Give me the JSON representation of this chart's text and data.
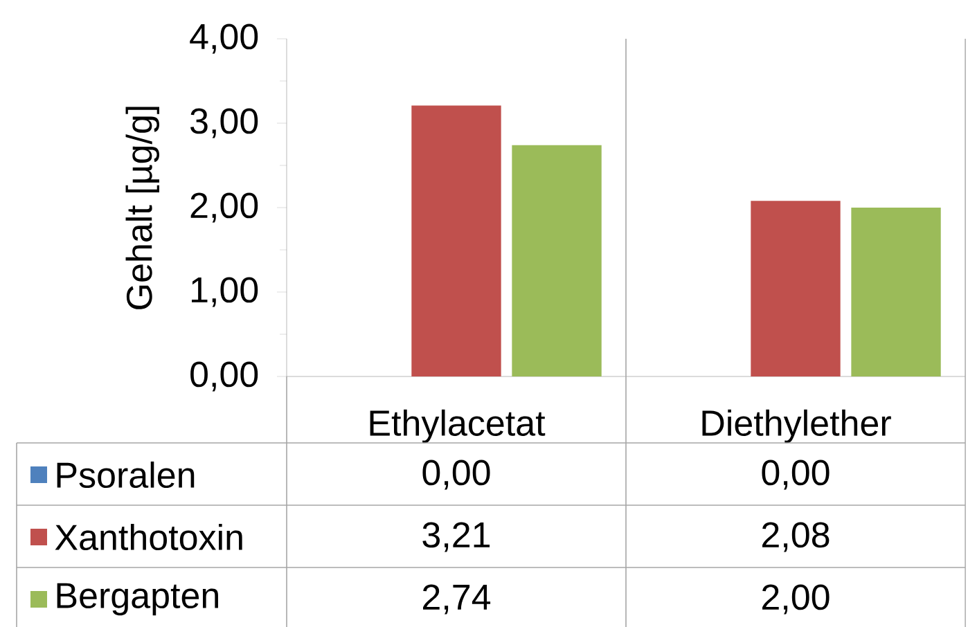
{
  "chart_data": {
    "type": "bar",
    "ylabel": "Gehalt [µg/g]",
    "categories": [
      "Ethylacetat",
      "Diethylether"
    ],
    "series": [
      {
        "name": "Psoralen",
        "color": "#4f81bd",
        "values": [
          0.0,
          0.0
        ],
        "value_labels": [
          "0,00",
          "0,00"
        ]
      },
      {
        "name": "Xanthotoxin",
        "color": "#c0504d",
        "values": [
          3.21,
          2.08
        ],
        "value_labels": [
          "3,21",
          "2,08"
        ]
      },
      {
        "name": "Bergapten",
        "color": "#9bbb59",
        "values": [
          2.74,
          2.0
        ],
        "value_labels": [
          "2,74",
          "2,00"
        ]
      }
    ],
    "ylim": [
      0,
      4
    ],
    "yticks": [
      {
        "value": 0,
        "label": "0,00"
      },
      {
        "value": 1,
        "label": "1,00"
      },
      {
        "value": 2,
        "label": "2,00"
      },
      {
        "value": 3,
        "label": "3,00"
      },
      {
        "value": 4,
        "label": "4,00"
      }
    ],
    "legend": "left"
  }
}
